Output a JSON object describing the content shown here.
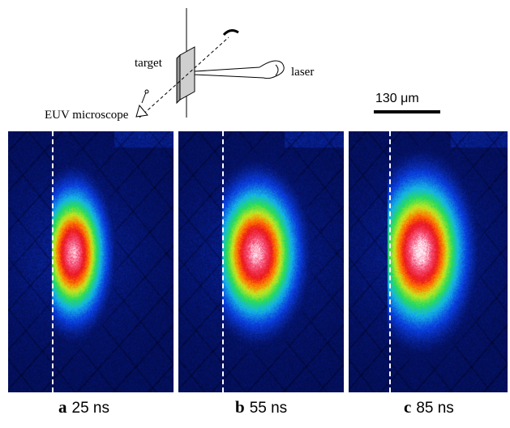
{
  "diagram": {
    "target_label": "target",
    "laser_label": "laser",
    "microscope_label": "EUV microscope",
    "scale_label": "130 μm"
  },
  "panels": [
    {
      "letter": "a",
      "time": "25 ns"
    },
    {
      "letter": "b",
      "time": "55 ns"
    },
    {
      "letter": "c",
      "time": "85 ns"
    }
  ],
  "colors": {
    "background_blue": "#000a40",
    "dashed_line": "#ffffff"
  }
}
